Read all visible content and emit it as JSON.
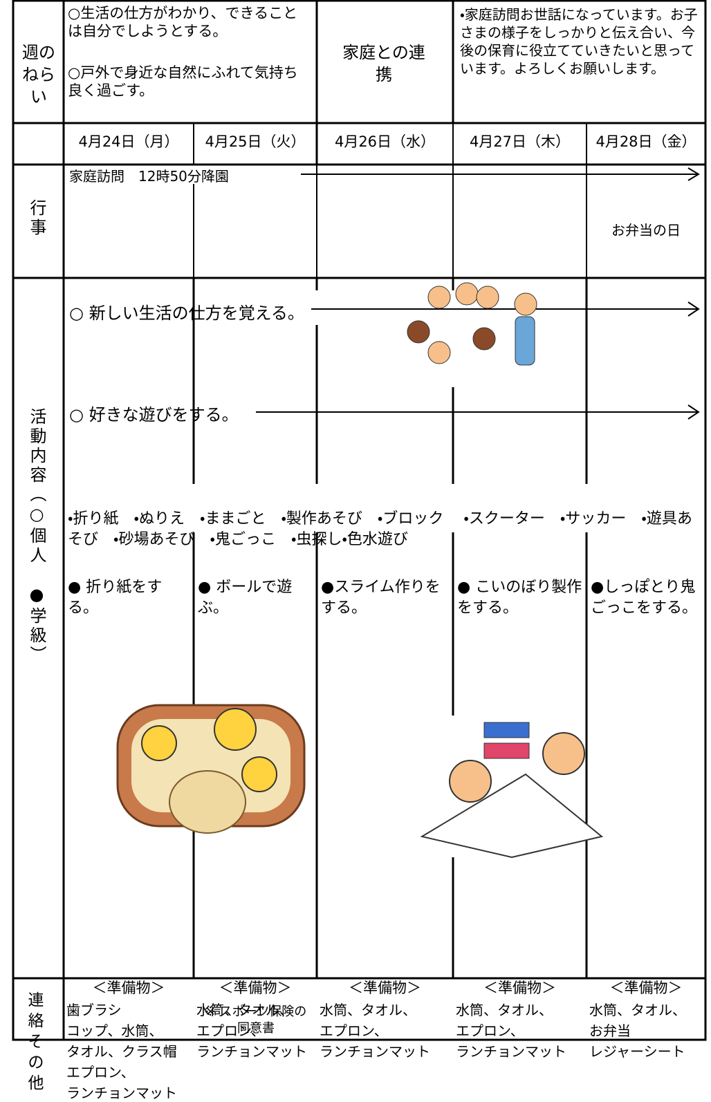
{
  "header": {
    "aim_label": "週のねらい",
    "aims": [
      "○生活の仕方がわかり、できることは自分でしようとする。",
      "○戸外で身近な自然にふれて気持ち良く過ごす。"
    ],
    "home_label": "家庭との連携",
    "home_text": "・家庭訪問お世話になっています。お子さまの様子をしっかりと伝え合い、今後の保育に役立てていきたいと思っています。よろしくお願いします。"
  },
  "days": [
    "4月24日（月）",
    "4月25日（火）",
    "4月26日（水）",
    "4月27日（木）",
    "4月28日（金）"
  ],
  "events": {
    "label": "行事",
    "items": [
      "家庭訪問　12時50分降園",
      "お弁当の日"
    ]
  },
  "activities": {
    "label": "活動内容（○個人　●学級）",
    "individual": [
      "○ 新しい生活の仕方を覚える。",
      "○ 好きな遊びをする。"
    ],
    "play_list": "・折り紙　・ぬりえ　・ままごと　・製作あそび　・ブロック　 ・スクーター　・サッカー　・遊具あそび　・砂場あそび　・鬼ごっこ　・虫探し・色水遊び",
    "class": [
      "● 折り紙をする。",
      "● ボールで遊ぶ。",
      "●スライム作りをする。",
      "● こいのぼり製作をする。",
      "●しっぽとり鬼ごっこをする。"
    ]
  },
  "contact": {
    "label": "連絡その他",
    "cells": [
      {
        "heading": "＜準備物＞",
        "lines": [
          "歯ブラシ",
          "コップ、水筒、",
          "タオル、クラス帽",
          "エプロン、",
          "ランチョンマット"
        ]
      },
      {
        "heading": "＜準備物＞",
        "lines": [
          "水筒、タオル、",
          "エプロン、",
          "ランチョンマット"
        ],
        "note": "※ スポーツ保険の同意書"
      },
      {
        "heading": "＜準備物＞",
        "lines": [
          "水筒、タオル、",
          "エプロン、",
          "ランチョンマット"
        ]
      },
      {
        "heading": "＜準備物＞",
        "lines": [
          "水筒、タオル、",
          "エプロン、",
          "ランチョンマット"
        ]
      },
      {
        "heading": "＜準備物＞",
        "lines": [
          "水筒、タオル、",
          "お弁当",
          "レジャーシート"
        ]
      }
    ]
  }
}
